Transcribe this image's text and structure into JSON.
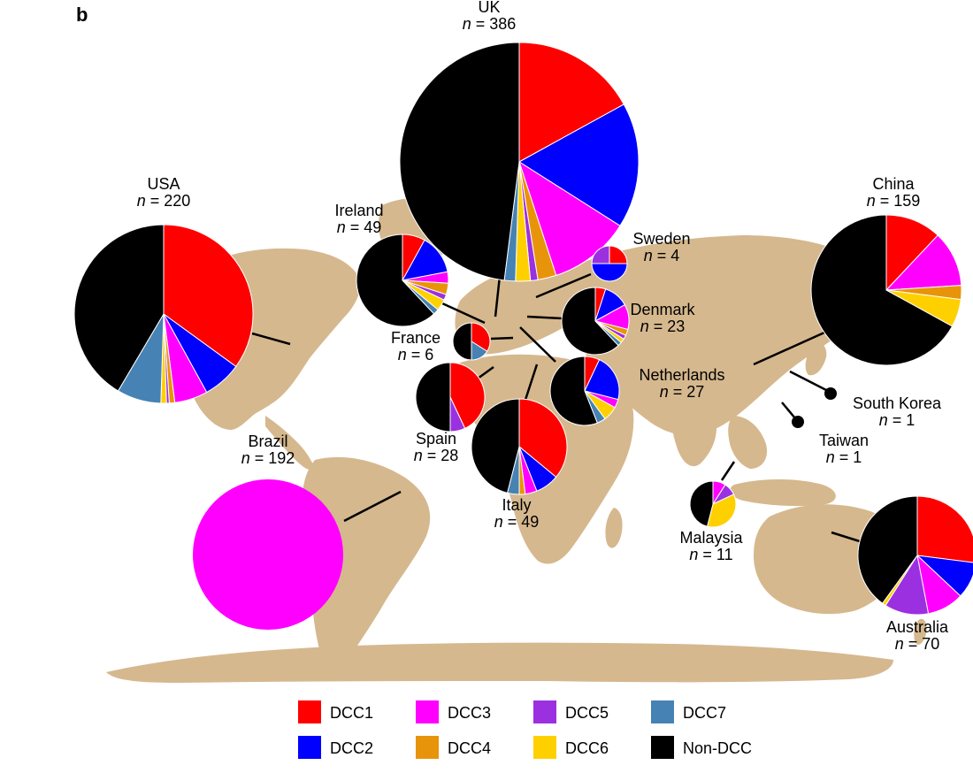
{
  "panel_label": "b",
  "n_prefix": "n",
  "n_separator": " = ",
  "colors": {
    "land": "#d6b88e",
    "line": "#000000",
    "slice_border": "#ffffff"
  },
  "categories": [
    {
      "key": "DCC1",
      "label": "DCC1",
      "color": "#ff0000"
    },
    {
      "key": "DCC2",
      "label": "DCC2",
      "color": "#0000ff"
    },
    {
      "key": "DCC3",
      "label": "DCC3",
      "color": "#ff00ff"
    },
    {
      "key": "DCC4",
      "label": "DCC4",
      "color": "#e8940a"
    },
    {
      "key": "DCC5",
      "label": "DCC5",
      "color": "#9b30e0"
    },
    {
      "key": "DCC6",
      "label": "DCC6",
      "color": "#ffd000"
    },
    {
      "key": "DCC7",
      "label": "DCC7",
      "color": "#4682b4"
    },
    {
      "key": "NonDCC",
      "label": "Non-DCC",
      "color": "#000000"
    }
  ],
  "countries": [
    {
      "name": "UK",
      "n": 386,
      "shares": {
        "DCC1": 0.17,
        "DCC2": 0.17,
        "DCC3": 0.11,
        "DCC4": 0.025,
        "DCC5": 0.01,
        "DCC6": 0.02,
        "DCC7": 0.015,
        "NonDCC": 0.48
      }
    },
    {
      "name": "USA",
      "n": 220,
      "shares": {
        "DCC1": 0.35,
        "DCC2": 0.07,
        "DCC3": 0.06,
        "DCC4": 0.01,
        "DCC5": 0.005,
        "DCC6": 0.01,
        "DCC7": 0.08,
        "NonDCC": 0.415
      }
    },
    {
      "name": "Ireland",
      "n": 49,
      "shares": {
        "DCC1": 0.08,
        "DCC2": 0.14,
        "DCC3": 0.04,
        "DCC4": 0.04,
        "DCC5": 0.02,
        "DCC6": 0.04,
        "DCC7": 0.02,
        "NonDCC": 0.62
      }
    },
    {
      "name": "Sweden",
      "n": 4,
      "shares": {
        "DCC1": 0.25,
        "DCC2": 0.5,
        "DCC5": 0.25
      }
    },
    {
      "name": "China",
      "n": 159,
      "shares": {
        "DCC1": 0.12,
        "DCC3": 0.12,
        "DCC4": 0.03,
        "DCC6": 0.06,
        "NonDCC": 0.67
      }
    },
    {
      "name": "Denmark",
      "n": 23,
      "shares": {
        "DCC1": 0.05,
        "DCC2": 0.12,
        "DCC3": 0.12,
        "DCC4": 0.03,
        "DCC5": 0.02,
        "DCC6": 0.02,
        "DCC7": 0.02,
        "NonDCC": 0.62
      }
    },
    {
      "name": "France",
      "n": 6,
      "shares": {
        "DCC1": 0.34,
        "DCC7": 0.16,
        "NonDCC": 0.5
      }
    },
    {
      "name": "Netherlands",
      "n": 27,
      "shares": {
        "DCC1": 0.07,
        "DCC2": 0.22,
        "DCC3": 0.04,
        "DCC6": 0.07,
        "DCC7": 0.04,
        "NonDCC": 0.56
      }
    },
    {
      "name": "South Korea",
      "n": 1,
      "shares": {
        "NonDCC": 1.0
      }
    },
    {
      "name": "Taiwan",
      "n": 1,
      "shares": {
        "NonDCC": 1.0
      }
    },
    {
      "name": "Spain",
      "n": 28,
      "shares": {
        "DCC1": 0.43,
        "DCC5": 0.07,
        "NonDCC": 0.5
      }
    },
    {
      "name": "Italy",
      "n": 49,
      "shares": {
        "DCC1": 0.36,
        "DCC2": 0.08,
        "DCC3": 0.04,
        "DCC4": 0.02,
        "DCC7": 0.04,
        "NonDCC": 0.46
      }
    },
    {
      "name": "Brazil",
      "n": 192,
      "shares": {
        "DCC3": 1.0
      }
    },
    {
      "name": "Malaysia",
      "n": 11,
      "shares": {
        "DCC3": 0.09,
        "DCC5": 0.09,
        "DCC6": 0.36,
        "NonDCC": 0.46
      }
    },
    {
      "name": "Australia",
      "n": 70,
      "shares": {
        "DCC1": 0.27,
        "DCC2": 0.1,
        "DCC3": 0.1,
        "DCC5": 0.12,
        "DCC6": 0.01,
        "NonDCC": 0.4
      }
    }
  ]
}
